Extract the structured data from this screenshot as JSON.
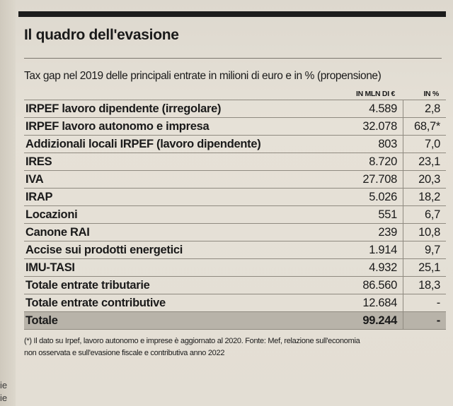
{
  "title": "Il quadro dell'evasione",
  "subtitle": "Tax gap nel 2019 delle principali entrate in milioni di euro e in % (propensione)",
  "columns": {
    "value": "IN MLN DI €",
    "percent": "IN %"
  },
  "rows": [
    {
      "label": "IRPEF lavoro dipendente (irregolare)",
      "value": "4.589",
      "percent": "2,8"
    },
    {
      "label": "IRPEF lavoro autonomo e impresa",
      "value": "32.078",
      "percent": "68,7*"
    },
    {
      "label": "Addizionali locali IRPEF (lavoro dipendente)",
      "value": "803",
      "percent": "7,0"
    },
    {
      "label": "IRES",
      "value": "8.720",
      "percent": "23,1"
    },
    {
      "label": "IVA",
      "value": "27.708",
      "percent": "20,3"
    },
    {
      "label": "IRAP",
      "value": "5.026",
      "percent": "18,2"
    },
    {
      "label": "Locazioni",
      "value": "551",
      "percent": "6,7"
    },
    {
      "label": "Canone RAI",
      "value": "239",
      "percent": "10,8"
    },
    {
      "label": "Accise sui prodotti energetici",
      "value": "1.914",
      "percent": "9,7"
    },
    {
      "label": "IMU-TASI",
      "value": "4.932",
      "percent": "25,1"
    },
    {
      "label": "Totale entrate tributarie",
      "value": "86.560",
      "percent": "18,3"
    },
    {
      "label": "Totale entrate contributive",
      "value": "12.684",
      "percent": "-"
    },
    {
      "label": "Totale",
      "value": "99.244",
      "percent": "-"
    }
  ],
  "footnote_line1": "(*) Il dato su Irpef, lavoro autonomo e imprese è aggiornato al 2020. Fonte: Mef, relazione sull'economia",
  "footnote_line2": "non osservata e sull'evasione fiscale e contributiva anno 2022",
  "margin_text": [
    "ie",
    "ie"
  ]
}
